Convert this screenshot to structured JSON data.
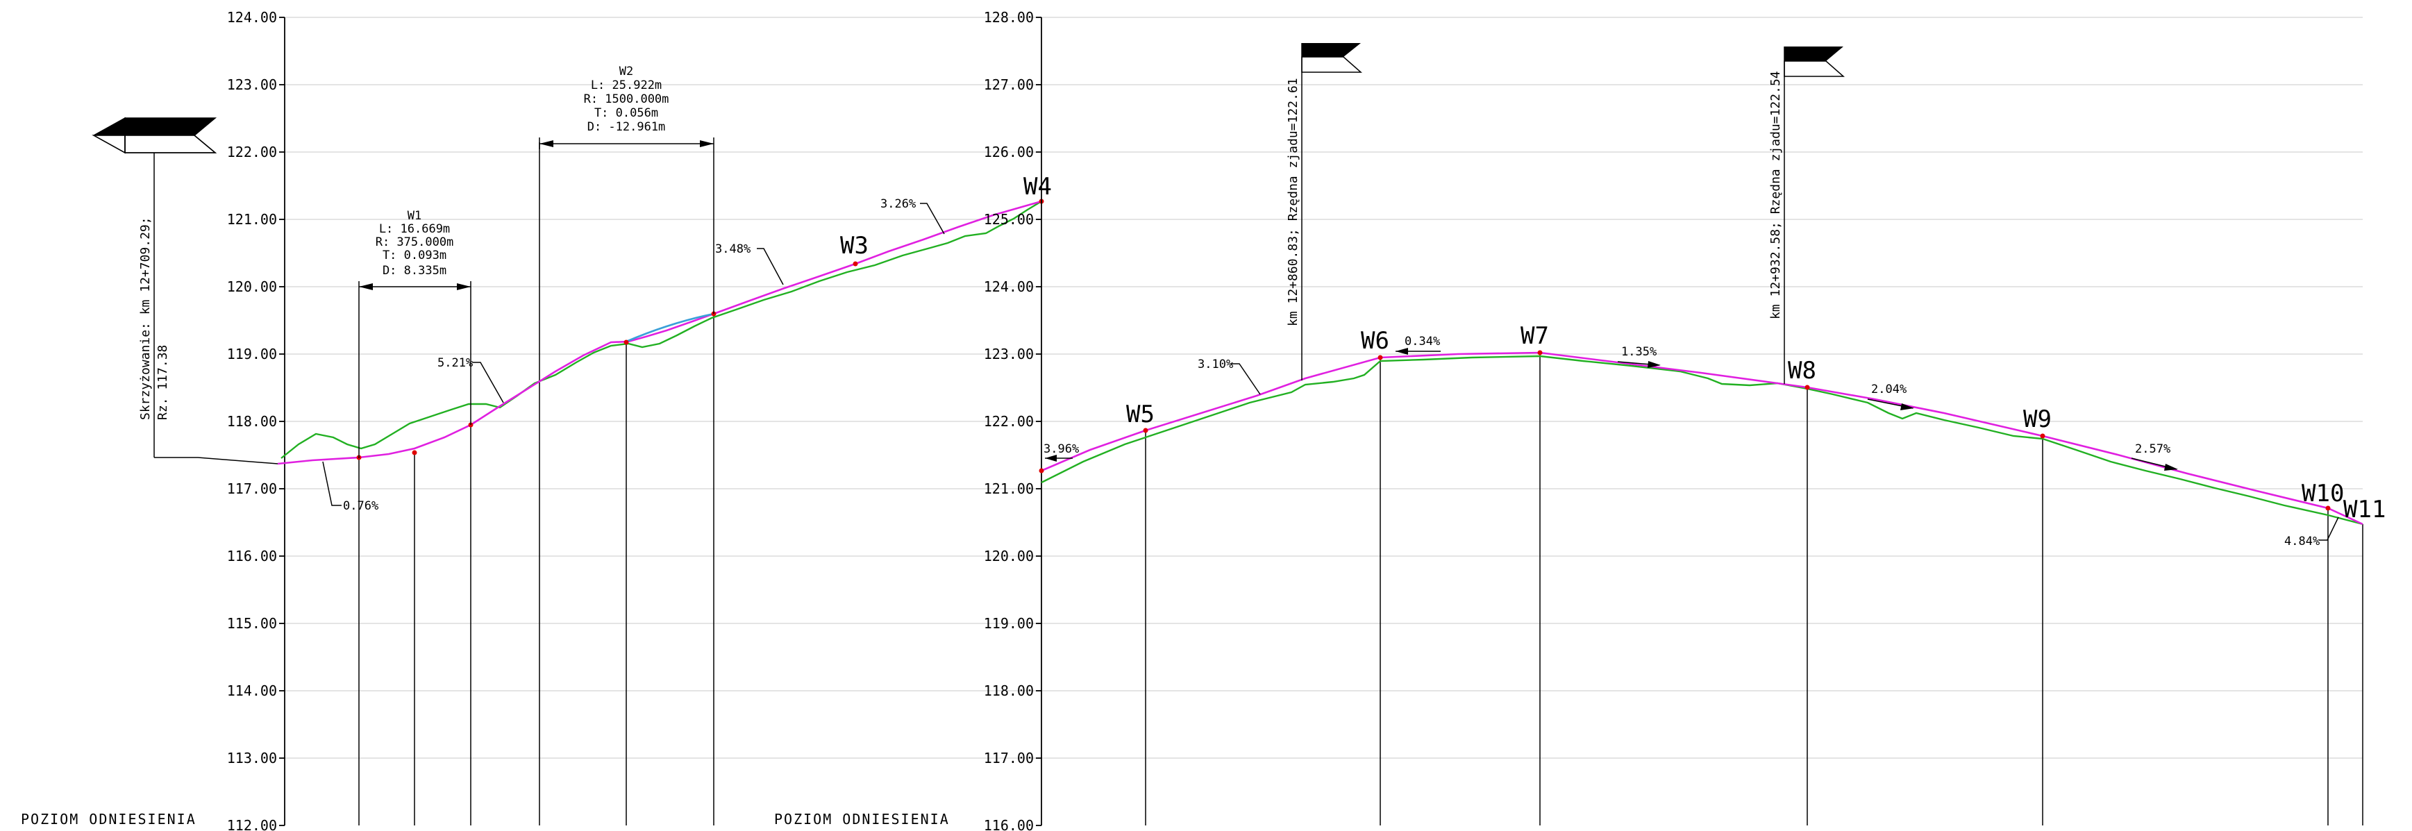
{
  "profiles": [
    {
      "id": "left",
      "axis": {
        "min": 112,
        "max": 124,
        "step": 1,
        "labels": [
          "112.00",
          "113.00",
          "114.00",
          "115.00",
          "116.00",
          "117.00",
          "118.00",
          "119.00",
          "120.00",
          "121.00",
          "122.00",
          "123.00",
          "124.00"
        ]
      },
      "reference_label": "POZIOM ODNIESIENIA",
      "points": [
        {
          "name": "W3",
          "elev": 120.35
        },
        {
          "name": "W4",
          "elev": 121.25
        }
      ],
      "grades": [
        "0.76%",
        "5.21%",
        "3.48%",
        "3.26%"
      ],
      "curves": [
        {
          "name": "W1",
          "L": "L: 16.669m",
          "R": "R: 375.000m",
          "T": "T: 0.093m",
          "D": "D: 8.335m"
        },
        {
          "name": "W2",
          "L": "L: 25.922m",
          "R": "R: 1500.000m",
          "T": "T: 0.056m",
          "D": "D: -12.961m"
        }
      ],
      "notes": [
        {
          "line1": "Skrzyżowanie: km 12+709.29;",
          "line2": "Rz. 117.38"
        }
      ]
    },
    {
      "id": "right",
      "axis": {
        "min": 116,
        "max": 128,
        "step": 1,
        "labels": [
          "116.00",
          "117.00",
          "118.00",
          "119.00",
          "120.00",
          "121.00",
          "122.00",
          "123.00",
          "124.00",
          "125.00",
          "126.00",
          "127.00",
          "128.00"
        ]
      },
      "reference_label": "POZIOM ODNIESIENIA",
      "points": [
        {
          "name": "W5",
          "elev": 121.85
        },
        {
          "name": "W6",
          "elev": 122.95
        },
        {
          "name": "W7",
          "elev": 123.02
        },
        {
          "name": "W8",
          "elev": 122.5
        },
        {
          "name": "W9",
          "elev": 121.8
        },
        {
          "name": "W10",
          "elev": 120.7
        },
        {
          "name": "W11",
          "elev": 120.45
        }
      ],
      "grades": [
        "3.96%",
        "3.10%",
        "0.34%",
        "1.35%",
        "2.04%",
        "2.57%",
        "4.84%"
      ],
      "notes": [
        {
          "line1": "km 12+860.83; Rzędna zjadu=122.61"
        },
        {
          "line1": "km 12+932.58; Rzędna zjadu=122.54"
        }
      ]
    }
  ],
  "colors": {
    "design_line": "#e020e0",
    "ground_line": "#22b022",
    "vertical_arc": "#3aa0d8",
    "vertex_marker": "#e00000",
    "grid": "#d4d4d4"
  },
  "icons": [
    "intersection-flag-icon",
    "driveway-flag-icon"
  ]
}
